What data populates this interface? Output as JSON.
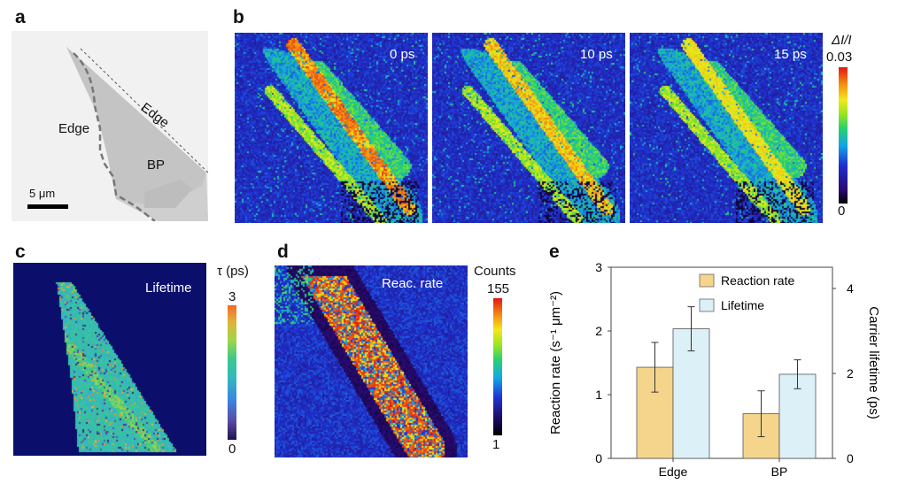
{
  "panels": {
    "a": {
      "label": "a",
      "edge_label_top": "Edge",
      "edge_label_left": "Edge",
      "bp_label": "BP",
      "scale_bar": "5 μm"
    },
    "b": {
      "label": "b",
      "frames": [
        "0 ps",
        "10 ps",
        "15 ps"
      ],
      "colorbar_title": "ΔI/I",
      "colorbar_max": "0.03",
      "colorbar_min": "0"
    },
    "c": {
      "label": "c",
      "map_title": "Lifetime",
      "colorbar_title": "τ (ps)",
      "colorbar_max": "3",
      "colorbar_min": "0"
    },
    "d": {
      "label": "d",
      "map_title": "Reac. rate",
      "colorbar_title": "Counts",
      "colorbar_max": "155",
      "colorbar_min": "1"
    },
    "e": {
      "label": "e"
    }
  },
  "colors": {
    "reaction_rate": "#f5d58b",
    "lifetime": "#dcf0f7",
    "map_background": "#0b0f6b"
  },
  "chart_data": {
    "type": "bar",
    "categories": [
      "Edge",
      "BP"
    ],
    "series": [
      {
        "name": "Reaction rate",
        "axis": "left",
        "values": [
          1.43,
          0.7
        ],
        "errors": [
          0.39,
          0.36
        ]
      },
      {
        "name": "Lifetime",
        "axis": "right",
        "values": [
          3.05,
          1.98
        ],
        "errors": [
          0.52,
          0.34
        ]
      }
    ],
    "ylabel_left": "Reaction rate (s⁻¹ μm⁻²)",
    "ylabel_right": "Carrier lifetime (ps)",
    "ylim_left": [
      0,
      3
    ],
    "ylim_right": [
      0,
      4.5
    ],
    "yticks_left": [
      "0",
      "1",
      "2",
      "3"
    ],
    "yticks_right": [
      "0",
      "2",
      "4"
    ],
    "legend": "top-right"
  }
}
